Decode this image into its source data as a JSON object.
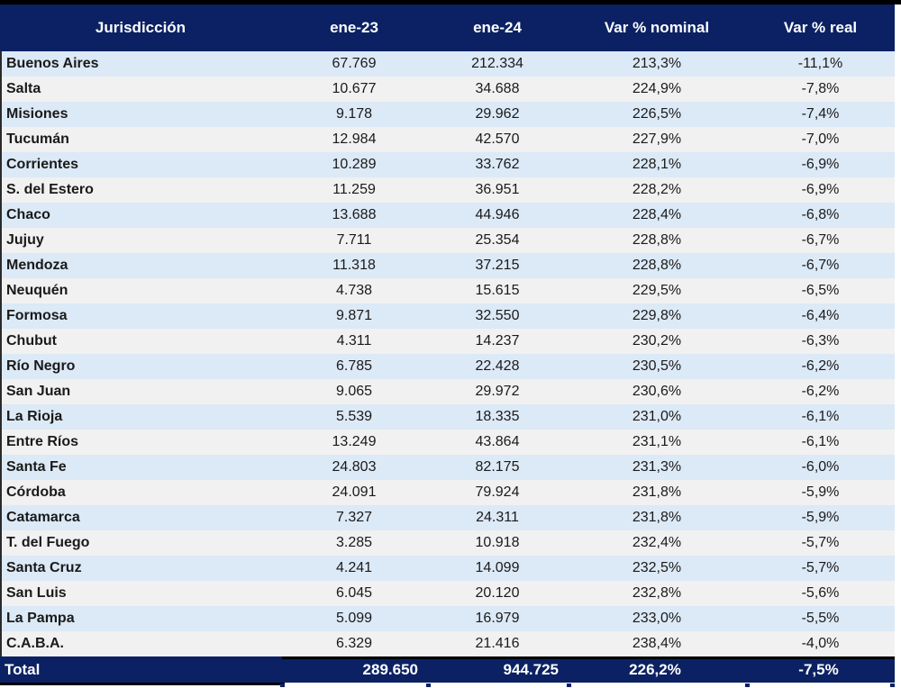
{
  "colors": {
    "header_bg": "#0B2163",
    "row_blue": "#DCE9F6",
    "row_gray": "#F1F1F1",
    "border": "#000000",
    "text": "#1A1A1A",
    "header_text": "#FFFFFF"
  },
  "table": {
    "columns": [
      "Jurisdicción",
      "ene-23",
      "ene-24",
      "Var % nominal",
      "Var % real"
    ],
    "rows": [
      {
        "name": "Buenos Aires",
        "ene23": "67.769",
        "ene24": "212.334",
        "var_nominal": "213,3%",
        "var_real": "-11,1%"
      },
      {
        "name": "Salta",
        "ene23": "10.677",
        "ene24": "34.688",
        "var_nominal": "224,9%",
        "var_real": "-7,8%"
      },
      {
        "name": "Misiones",
        "ene23": "9.178",
        "ene24": "29.962",
        "var_nominal": "226,5%",
        "var_real": "-7,4%"
      },
      {
        "name": "Tucumán",
        "ene23": "12.984",
        "ene24": "42.570",
        "var_nominal": "227,9%",
        "var_real": "-7,0%"
      },
      {
        "name": "Corrientes",
        "ene23": "10.289",
        "ene24": "33.762",
        "var_nominal": "228,1%",
        "var_real": "-6,9%"
      },
      {
        "name": "S. del Estero",
        "ene23": "11.259",
        "ene24": "36.951",
        "var_nominal": "228,2%",
        "var_real": "-6,9%"
      },
      {
        "name": "Chaco",
        "ene23": "13.688",
        "ene24": "44.946",
        "var_nominal": "228,4%",
        "var_real": "-6,8%"
      },
      {
        "name": "Jujuy",
        "ene23": "7.711",
        "ene24": "25.354",
        "var_nominal": "228,8%",
        "var_real": "-6,7%"
      },
      {
        "name": "Mendoza",
        "ene23": "11.318",
        "ene24": "37.215",
        "var_nominal": "228,8%",
        "var_real": "-6,7%"
      },
      {
        "name": "Neuquén",
        "ene23": "4.738",
        "ene24": "15.615",
        "var_nominal": "229,5%",
        "var_real": "-6,5%"
      },
      {
        "name": "Formosa",
        "ene23": "9.871",
        "ene24": "32.550",
        "var_nominal": "229,8%",
        "var_real": "-6,4%"
      },
      {
        "name": "Chubut",
        "ene23": "4.311",
        "ene24": "14.237",
        "var_nominal": "230,2%",
        "var_real": "-6,3%"
      },
      {
        "name": "Río Negro",
        "ene23": "6.785",
        "ene24": "22.428",
        "var_nominal": "230,5%",
        "var_real": "-6,2%"
      },
      {
        "name": "San Juan",
        "ene23": "9.065",
        "ene24": "29.972",
        "var_nominal": "230,6%",
        "var_real": "-6,2%"
      },
      {
        "name": "La Rioja",
        "ene23": "5.539",
        "ene24": "18.335",
        "var_nominal": "231,0%",
        "var_real": "-6,1%"
      },
      {
        "name": "Entre Ríos",
        "ene23": "13.249",
        "ene24": "43.864",
        "var_nominal": "231,1%",
        "var_real": "-6,1%"
      },
      {
        "name": "Santa Fe",
        "ene23": "24.803",
        "ene24": "82.175",
        "var_nominal": "231,3%",
        "var_real": "-6,0%"
      },
      {
        "name": "Córdoba",
        "ene23": "24.091",
        "ene24": "79.924",
        "var_nominal": "231,8%",
        "var_real": "-5,9%"
      },
      {
        "name": "Catamarca",
        "ene23": "7.327",
        "ene24": "24.311",
        "var_nominal": "231,8%",
        "var_real": "-5,9%"
      },
      {
        "name": "T. del Fuego",
        "ene23": "3.285",
        "ene24": "10.918",
        "var_nominal": "232,4%",
        "var_real": "-5,7%"
      },
      {
        "name": "Santa Cruz",
        "ene23": "4.241",
        "ene24": "14.099",
        "var_nominal": "232,5%",
        "var_real": "-5,7%"
      },
      {
        "name": "San Luis",
        "ene23": "6.045",
        "ene24": "20.120",
        "var_nominal": "232,8%",
        "var_real": "-5,6%"
      },
      {
        "name": "La Pampa",
        "ene23": "5.099",
        "ene24": "16.979",
        "var_nominal": "233,0%",
        "var_real": "-5,5%"
      },
      {
        "name": "C.A.B.A.",
        "ene23": "6.329",
        "ene24": "21.416",
        "var_nominal": "238,4%",
        "var_real": "-4,0%"
      }
    ],
    "total": {
      "name": "Total",
      "ene23": "289.650",
      "ene24": "944.725",
      "var_nominal": "226,2%",
      "var_real": "-7,5%"
    }
  },
  "chart_data": {
    "type": "table",
    "title": "",
    "columns": [
      "Jurisdicción",
      "ene-23",
      "ene-24",
      "Var % nominal",
      "Var % real"
    ],
    "rows": [
      [
        "Buenos Aires",
        67769,
        212334,
        "213,3%",
        "-11,1%"
      ],
      [
        "Salta",
        10677,
        34688,
        "224,9%",
        "-7,8%"
      ],
      [
        "Misiones",
        9178,
        29962,
        "226,5%",
        "-7,4%"
      ],
      [
        "Tucumán",
        12984,
        42570,
        "227,9%",
        "-7,0%"
      ],
      [
        "Corrientes",
        10289,
        33762,
        "228,1%",
        "-6,9%"
      ],
      [
        "S. del Estero",
        11259,
        36951,
        "228,2%",
        "-6,9%"
      ],
      [
        "Chaco",
        13688,
        44946,
        "228,4%",
        "-6,8%"
      ],
      [
        "Jujuy",
        7711,
        25354,
        "228,8%",
        "-6,7%"
      ],
      [
        "Mendoza",
        11318,
        37215,
        "228,8%",
        "-6,7%"
      ],
      [
        "Neuquén",
        4738,
        15615,
        "229,5%",
        "-6,5%"
      ],
      [
        "Formosa",
        9871,
        32550,
        "229,8%",
        "-6,4%"
      ],
      [
        "Chubut",
        4311,
        14237,
        "230,2%",
        "-6,3%"
      ],
      [
        "Río Negro",
        6785,
        22428,
        "230,5%",
        "-6,2%"
      ],
      [
        "San Juan",
        9065,
        29972,
        "230,6%",
        "-6,2%"
      ],
      [
        "La Rioja",
        5539,
        18335,
        "231,0%",
        "-6,1%"
      ],
      [
        "Entre Ríos",
        13249,
        43864,
        "231,1%",
        "-6,1%"
      ],
      [
        "Santa Fe",
        24803,
        82175,
        "231,3%",
        "-6,0%"
      ],
      [
        "Córdoba",
        24091,
        79924,
        "231,8%",
        "-5,9%"
      ],
      [
        "Catamarca",
        7327,
        24311,
        "231,8%",
        "-5,9%"
      ],
      [
        "T. del Fuego",
        3285,
        10918,
        "232,4%",
        "-5,7%"
      ],
      [
        "Santa Cruz",
        4241,
        14099,
        "232,5%",
        "-5,7%"
      ],
      [
        "San Luis",
        6045,
        20120,
        "232,8%",
        "-5,6%"
      ],
      [
        "La Pampa",
        5099,
        16979,
        "233,0%",
        "-5,5%"
      ],
      [
        "C.A.B.A.",
        6329,
        21416,
        "238,4%",
        "-4,0%"
      ]
    ],
    "total_row": [
      "Total",
      289650,
      944725,
      "226,2%",
      "-7,5%"
    ],
    "layout": {
      "striped": true,
      "odd_row_color": "#DCE9F6",
      "even_row_color": "#F1F1F1",
      "header_color": "#0B2163"
    }
  }
}
